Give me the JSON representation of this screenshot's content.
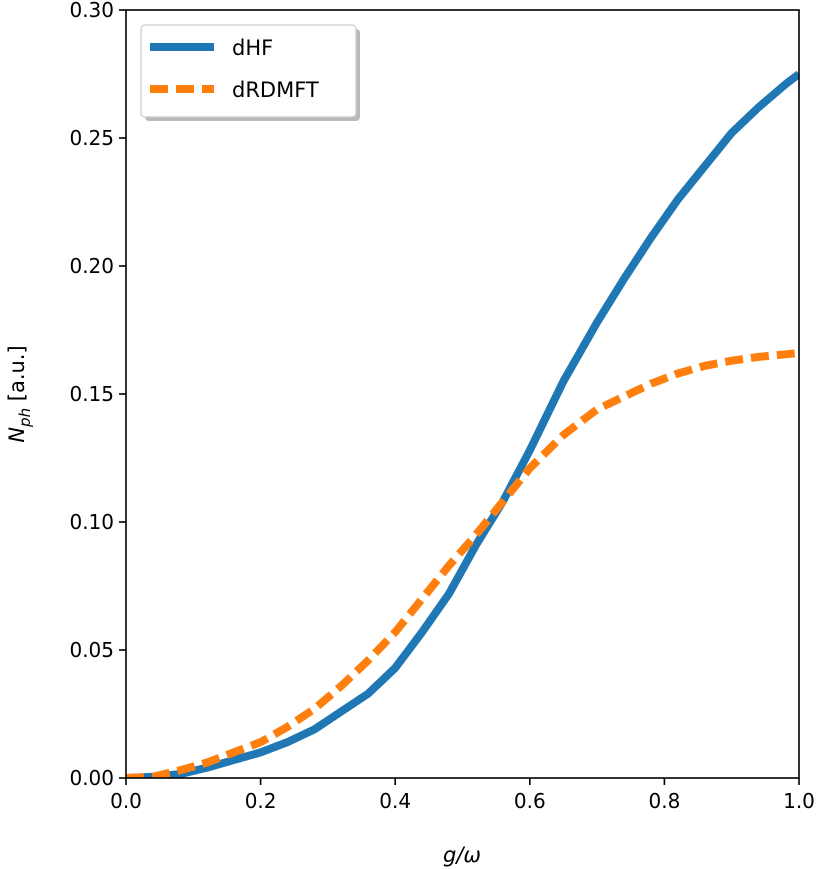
{
  "chart_data": {
    "type": "line",
    "xlabel": "g/ω",
    "ylabel": "N_ph [a.u.]",
    "xlim": [
      0.0,
      1.0
    ],
    "ylim": [
      0.0,
      0.3
    ],
    "xticks": [
      "0.0",
      "0.2",
      "0.4",
      "0.6",
      "0.8",
      "1.0"
    ],
    "yticks": [
      "0.00",
      "0.05",
      "0.10",
      "0.15",
      "0.20",
      "0.25",
      "0.30"
    ],
    "grid": false,
    "legend_position": "top-left",
    "series": [
      {
        "name": "dHF",
        "color": "#1f77b4",
        "style": "solid",
        "x": [
          0.0,
          0.04,
          0.08,
          0.12,
          0.16,
          0.2,
          0.24,
          0.28,
          0.32,
          0.36,
          0.4,
          0.44,
          0.48,
          0.52,
          0.56,
          0.6,
          0.65,
          0.7,
          0.74,
          0.78,
          0.82,
          0.86,
          0.9,
          0.94,
          0.98,
          1.0
        ],
        "y": [
          0.0,
          0.0005,
          0.0015,
          0.004,
          0.007,
          0.01,
          0.014,
          0.019,
          0.026,
          0.033,
          0.043,
          0.057,
          0.072,
          0.091,
          0.108,
          0.128,
          0.155,
          0.178,
          0.195,
          0.211,
          0.226,
          0.239,
          0.252,
          0.262,
          0.271,
          0.275
        ]
      },
      {
        "name": "dRDMFT",
        "color": "#ff7f0e",
        "style": "dashed",
        "x": [
          0.0,
          0.04,
          0.08,
          0.12,
          0.16,
          0.2,
          0.24,
          0.28,
          0.32,
          0.36,
          0.4,
          0.44,
          0.48,
          0.52,
          0.56,
          0.6,
          0.65,
          0.7,
          0.74,
          0.78,
          0.82,
          0.86,
          0.9,
          0.94,
          0.98,
          1.0
        ],
        "y": [
          0.0,
          0.0005,
          0.003,
          0.006,
          0.01,
          0.014,
          0.02,
          0.027,
          0.036,
          0.046,
          0.057,
          0.07,
          0.083,
          0.095,
          0.108,
          0.121,
          0.134,
          0.144,
          0.149,
          0.154,
          0.158,
          0.161,
          0.163,
          0.1645,
          0.1655,
          0.166
        ]
      }
    ]
  }
}
